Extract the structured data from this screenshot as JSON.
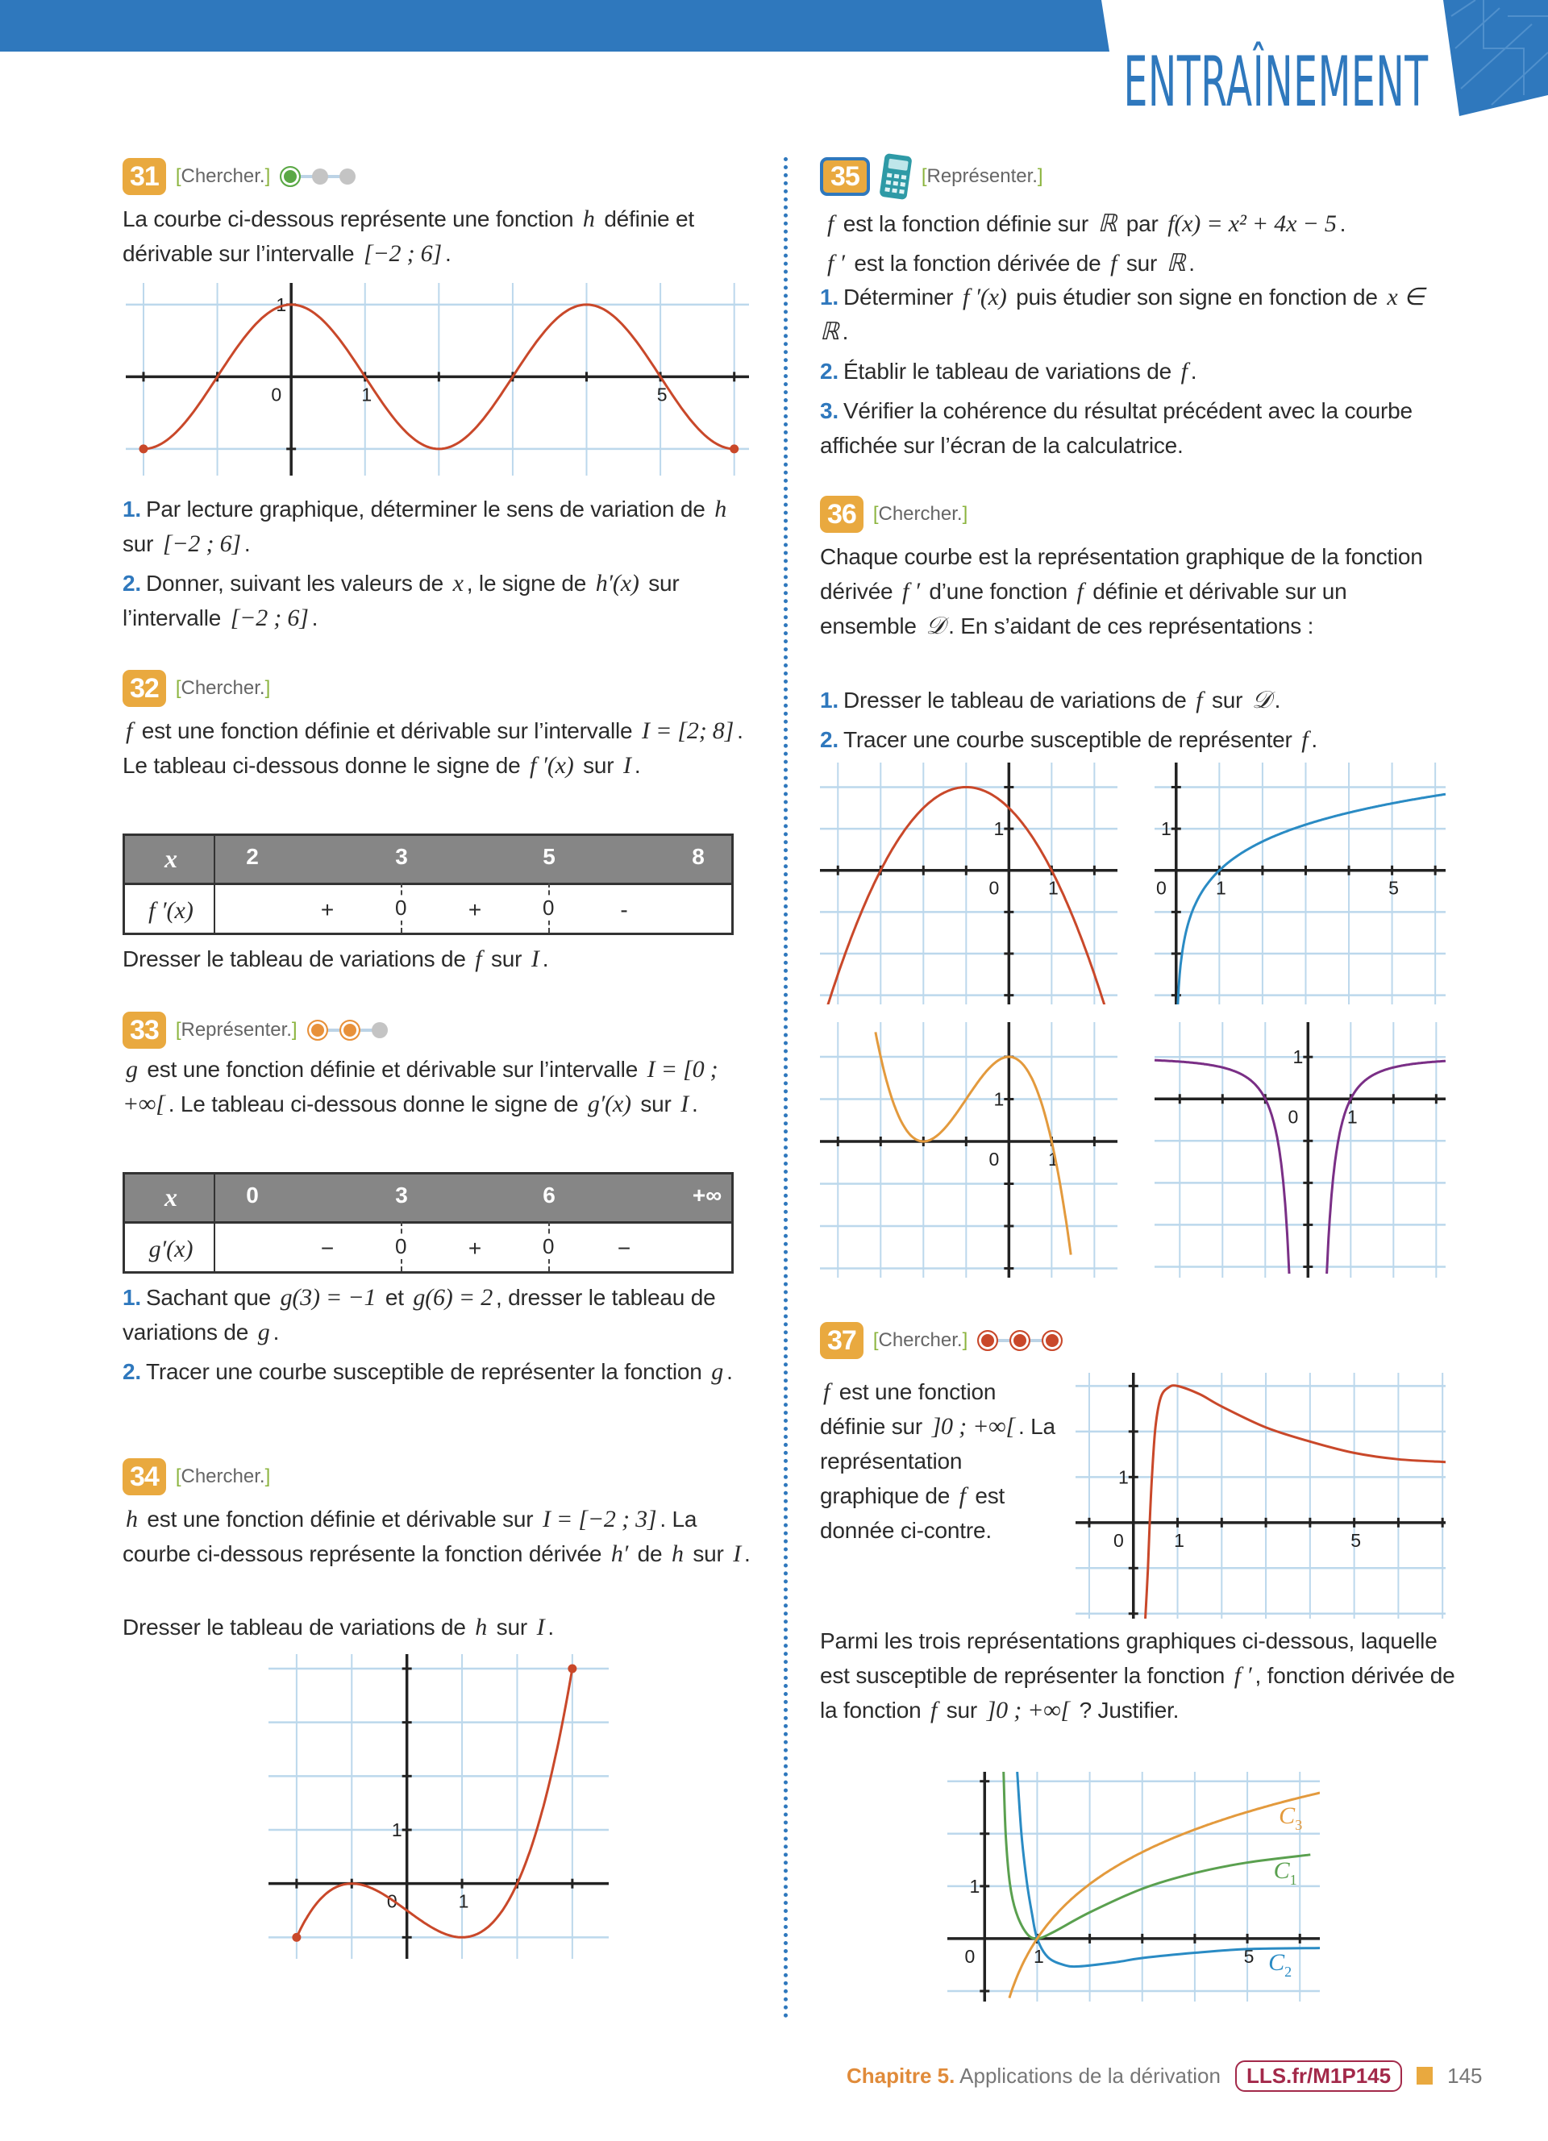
{
  "header": {
    "title": "ENTRAÎNEMENT",
    "accent": "#2f78bd"
  },
  "ex31": {
    "number": "31",
    "skill": "Chercher.",
    "level": 1,
    "level_color": "#5aa845",
    "intro": {
      "segs": [
        {
          "t": "La courbe ci-dessous représente une fonction "
        },
        {
          "m": "h"
        },
        {
          "t": " définie et dérivable sur l’intervalle "
        },
        {
          "m": "[−2 ; 6]"
        },
        {
          "t": "."
        }
      ]
    },
    "graph": {
      "x_range": [
        -2.24,
        6.2
      ],
      "y_range": [
        -1.37,
        1.3
      ],
      "x_labels": [
        "1",
        "5"
      ],
      "y_labels": [
        "1"
      ],
      "origin": "0",
      "curve_color": "#c9482a"
    },
    "questions": [
      {
        "num": "1.",
        "segs": [
          {
            "t": "Par lecture graphique, déterminer le sens de variation de "
          },
          {
            "m": "h"
          },
          {
            "t": " sur "
          },
          {
            "m": "[−2 ; 6]"
          },
          {
            "t": "."
          }
        ]
      },
      {
        "num": "2.",
        "segs": [
          {
            "t": "Donner, suivant les valeurs de "
          },
          {
            "m": "x"
          },
          {
            "t": ", le signe de "
          },
          {
            "m": "h′(x)"
          },
          {
            "t": " sur l’intervalle "
          },
          {
            "m": "[−2 ; 6]"
          },
          {
            "t": "."
          }
        ]
      }
    ]
  },
  "ex32": {
    "number": "32",
    "skill": "Chercher.",
    "intro": {
      "segs": [
        {
          "m": "f"
        },
        {
          "t": " est une fonction définie et dérivable sur l’intervalle "
        },
        {
          "m": "I = [2; 8]"
        },
        {
          "t": ". Le tableau ci-dessous donne le signe de "
        },
        {
          "m": "f ′(x)"
        },
        {
          "t": " sur "
        },
        {
          "m": "I"
        },
        {
          "t": "."
        }
      ]
    },
    "table": {
      "header": [
        "x",
        "2",
        "3",
        "5",
        "8"
      ],
      "row_label": "f ′(x)",
      "signs": [
        "+",
        "+",
        "-"
      ],
      "zeros": [
        "0",
        "0"
      ]
    },
    "after": {
      "segs": [
        {
          "t": "Dresser le tableau de variations de "
        },
        {
          "m": "f"
        },
        {
          "t": " sur "
        },
        {
          "m": "I"
        },
        {
          "t": "."
        }
      ]
    }
  },
  "ex33": {
    "number": "33",
    "skill": "Représenter.",
    "level": 2,
    "level_color": "#e8913a",
    "intro": {
      "segs": [
        {
          "m": "g"
        },
        {
          "t": " est une fonction définie et dérivable sur l’intervalle "
        },
        {
          "m": "I = [0 ; +∞["
        },
        {
          "t": ". Le tableau ci-dessous donne le signe de "
        },
        {
          "m": "g′(x)"
        },
        {
          "t": " sur "
        },
        {
          "m": "I"
        },
        {
          "t": "."
        }
      ]
    },
    "table": {
      "header": [
        "x",
        "0",
        "3",
        "6",
        "+∞"
      ],
      "row_label": "g′(x)",
      "signs": [
        "−",
        "+",
        "−"
      ],
      "zeros": [
        "0",
        "0"
      ]
    },
    "questions": [
      {
        "num": "1.",
        "segs": [
          {
            "t": "Sachant que "
          },
          {
            "m": "g(3) = −1"
          },
          {
            "t": " et "
          },
          {
            "m": "g(6) = 2"
          },
          {
            "t": ", dresser le tableau de variations de "
          },
          {
            "m": "g"
          },
          {
            "t": "."
          }
        ]
      },
      {
        "num": "2.",
        "segs": [
          {
            "t": "Tracer une courbe susceptible de représenter la fonction "
          },
          {
            "m": "g"
          },
          {
            "t": "."
          }
        ]
      }
    ]
  },
  "ex34": {
    "number": "34",
    "skill": "Chercher.",
    "intro": {
      "segs": [
        {
          "m": "h"
        },
        {
          "t": " est une fonction définie et dérivable sur "
        },
        {
          "m": "I = [−2 ; 3]"
        },
        {
          "t": ". La courbe ci-dessous représente la fonction dérivée "
        },
        {
          "m": "h′"
        },
        {
          "t": " de "
        },
        {
          "m": "h"
        },
        {
          "t": " sur "
        },
        {
          "m": "I"
        },
        {
          "t": "."
        }
      ]
    },
    "after": {
      "segs": [
        {
          "t": "Dresser le tableau de variations de "
        },
        {
          "m": "h"
        },
        {
          "t": " sur "
        },
        {
          "m": "I"
        },
        {
          "t": "."
        }
      ]
    },
    "graph": {
      "x_range": [
        -2.51,
        3.66
      ],
      "y_range": [
        -1.4,
        4.27
      ],
      "x_labels": [
        "1"
      ],
      "y_labels": [
        "1"
      ],
      "origin": "0",
      "curve_color": "#c9482a"
    }
  },
  "ex35": {
    "number": "35",
    "skill": "Représenter.",
    "icon": "calculator-icon",
    "intro": [
      {
        "segs": [
          {
            "m": "f"
          },
          {
            "t": " est la fonction définie sur "
          },
          {
            "m": "ℝ"
          },
          {
            "t": " par "
          },
          {
            "m": "f(x) = x² + 4x − 5"
          },
          {
            "t": "."
          }
        ]
      },
      {
        "segs": [
          {
            "m": "f ′"
          },
          {
            "t": " est la fonction dérivée de "
          },
          {
            "m": "f"
          },
          {
            "t": " sur "
          },
          {
            "m": "ℝ"
          },
          {
            "t": "."
          }
        ]
      }
    ],
    "questions": [
      {
        "num": "1.",
        "segs": [
          {
            "t": "Déterminer "
          },
          {
            "m": "f ′(x)"
          },
          {
            "t": " puis étudier son signe en fonction de "
          },
          {
            "m": "x ∈ ℝ"
          },
          {
            "t": "."
          }
        ]
      },
      {
        "num": "2.",
        "segs": [
          {
            "t": "Établir le tableau de variations de "
          },
          {
            "m": "f"
          },
          {
            "t": "."
          }
        ]
      },
      {
        "num": "3.",
        "segs": [
          {
            "t": "Vérifier la cohérence du résultat précédent avec la courbe affichée sur l’écran de la calculatrice."
          }
        ]
      }
    ]
  },
  "ex36": {
    "number": "36",
    "skill": "Chercher.",
    "intro": {
      "segs": [
        {
          "t": "Chaque courbe est la représentation graphique de la fonction dérivée "
        },
        {
          "m": "f ′"
        },
        {
          "t": " d’une fonction "
        },
        {
          "m": "f"
        },
        {
          "t": " définie et dérivable sur un ensemble "
        },
        {
          "m": "𝒟"
        },
        {
          "t": ". En s’aidant de ces représentations :"
        }
      ]
    },
    "questions": [
      {
        "num": "1.",
        "segs": [
          {
            "t": "Dresser le tableau de variations de "
          },
          {
            "m": "f"
          },
          {
            "t": " sur "
          },
          {
            "m": "𝒟"
          },
          {
            "t": "."
          }
        ]
      },
      {
        "num": "2.",
        "segs": [
          {
            "t": "Tracer une courbe susceptible de représenter "
          },
          {
            "m": "f"
          },
          {
            "t": "."
          }
        ]
      }
    ],
    "graphs": [
      {
        "x_range": [
          -4.42,
          2.54
        ],
        "y_range": [
          -3.22,
          2.59
        ],
        "x_labels": [
          "1"
        ],
        "y_labels": [
          "1"
        ],
        "origin": "0",
        "curve_color": "#c9482a"
      },
      {
        "x_range": [
          -0.5,
          6.24
        ],
        "y_range": [
          -3.22,
          2.59
        ],
        "x_labels": [
          "1",
          "5"
        ],
        "y_labels": [
          "1"
        ],
        "origin": "0",
        "curve_color": "#2a8bc4"
      },
      {
        "x_range": [
          -4.42,
          2.54
        ],
        "y_range": [
          -3.22,
          2.82
        ],
        "x_labels": [
          "1"
        ],
        "y_labels": [
          "1"
        ],
        "origin": "0",
        "curve_color": "#e39a3d"
      },
      {
        "x_range": [
          -3.59,
          3.22
        ],
        "y_range": [
          -4.26,
          1.83
        ],
        "x_labels": [
          "1"
        ],
        "y_labels": [
          "1"
        ],
        "origin": "0",
        "curve_color": "#7a2f86"
      }
    ]
  },
  "ex37": {
    "number": "37",
    "skill": "Chercher.",
    "level": 3,
    "level_color": "#c9482a",
    "intro": {
      "segs": [
        {
          "m": "f"
        },
        {
          "t": " est une fonction définie sur "
        },
        {
          "m": "]0 ; +∞["
        },
        {
          "t": ". La représentation graphique de "
        },
        {
          "m": "f"
        },
        {
          "t": " est donnée ci-contre."
        }
      ]
    },
    "graph": {
      "x_range": [
        -1.31,
        7.07
      ],
      "y_range": [
        -2.11,
        3.29
      ],
      "x_labels": [
        "1",
        "5"
      ],
      "y_labels": [
        "1"
      ],
      "origin": "0",
      "curve_color": "#c9482a"
    },
    "after": {
      "segs": [
        {
          "t": "Parmi les trois représentations graphiques ci-dessous, laquelle est susceptible de représenter la fonction "
        },
        {
          "m": "f ′"
        },
        {
          "t": ", fonction dérivée de la fonction "
        },
        {
          "m": "f"
        },
        {
          "t": " sur "
        },
        {
          "m": "]0 ; +∞["
        },
        {
          "t": " ? Justifier."
        }
      ]
    },
    "graph2": {
      "x_range": [
        -0.71,
        6.38
      ],
      "y_range": [
        -1.2,
        3.18
      ],
      "x_labels": [
        "1",
        "5"
      ],
      "y_labels": [
        "1"
      ],
      "origin": "0",
      "series": [
        {
          "letter": "C",
          "sub": "1",
          "color": "#5aa04f"
        },
        {
          "letter": "C",
          "sub": "2",
          "color": "#2a8bc4"
        },
        {
          "letter": "C",
          "sub": "3",
          "color": "#e39a3d"
        }
      ]
    }
  },
  "footer": {
    "chapter": "Chapitre 5.",
    "chapter_title": "Applications de la dérivation",
    "link": "LLS.fr/M1P145",
    "page": "145"
  }
}
